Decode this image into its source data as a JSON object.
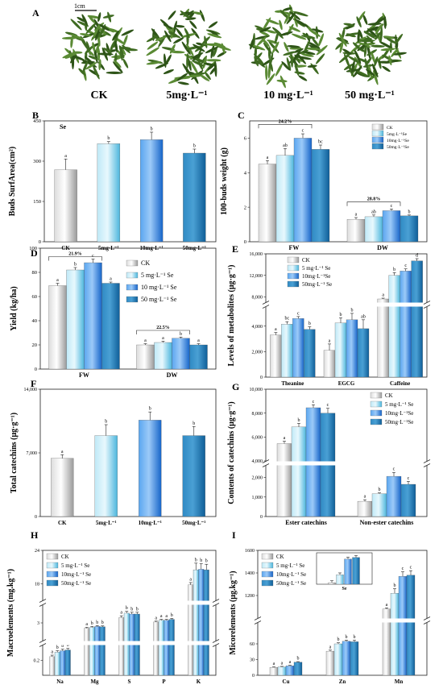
{
  "colors": {
    "ck": "#b8b8b8",
    "s5": "#7fd0ec",
    "s10": "#2f86e0",
    "s50": "#1a74b4",
    "leaf": "#4e7a2e",
    "axis": "#222222"
  },
  "panelA": {
    "letter": "A",
    "scale_label": "1cm",
    "samples": [
      "CK",
      "5mg·L⁻¹",
      "10 mg·L⁻¹",
      "50 mg·L⁻¹"
    ]
  },
  "chart_data": [
    {
      "id": "B",
      "letter": "B",
      "type": "bar",
      "ylabel": "Buds SurfArea(cm²)",
      "ylim": [
        0,
        450
      ],
      "yticks": [
        0,
        150,
        300,
        450
      ],
      "categories": [
        "CK",
        "5mg·L⁻¹",
        "10mg·L⁻¹",
        "50mg·L⁻¹"
      ],
      "values": [
        268,
        365,
        380,
        330
      ],
      "errors": [
        40,
        8,
        28,
        15
      ],
      "letters": [
        "a",
        "b",
        "b",
        "b"
      ],
      "annotation": "Se"
    },
    {
      "id": "C",
      "letter": "C",
      "type": "bar",
      "ylabel": "100-buds weight (g)",
      "ylim": [
        0,
        7
      ],
      "yticks": [
        0,
        2,
        4,
        6
      ],
      "categories": [
        "FW",
        "DW"
      ],
      "series": [
        {
          "name": "CK",
          "values": [
            4.5,
            1.3
          ],
          "errors": [
            0.2,
            0.1
          ],
          "letters": [
            "a",
            "a"
          ]
        },
        {
          "name": "5mg·L⁻¹Se",
          "values": [
            5.0,
            1.45
          ],
          "errors": [
            0.4,
            0.1
          ],
          "letters": [
            "ab",
            "ab"
          ]
        },
        {
          "name": "10mg·L⁻¹Se",
          "values": [
            6.0,
            1.8
          ],
          "errors": [
            0.25,
            0.1
          ],
          "letters": [
            "c",
            "c"
          ]
        },
        {
          "name": "50mg·L⁻¹Se",
          "values": [
            5.35,
            1.5
          ],
          "errors": [
            0.25,
            0.05
          ],
          "letters": [
            "bc",
            "b"
          ]
        }
      ],
      "brackets": [
        {
          "cat": 0,
          "label": "24.2%"
        },
        {
          "cat": 1,
          "label": "28.8%"
        }
      ],
      "legend": "top-right"
    },
    {
      "id": "D",
      "letter": "D",
      "type": "bar",
      "ylabel": "Yield (kg/ha)",
      "ylim": [
        0,
        100
      ],
      "yticks": [
        0,
        20,
        40,
        60,
        80,
        100
      ],
      "categories": [
        "FW",
        "DW"
      ],
      "series": [
        {
          "name": "CK",
          "values": [
            69,
            20
          ],
          "errors": [
            2,
            1
          ],
          "letters": [
            "a",
            "a"
          ]
        },
        {
          "name": "5 mg·L⁻¹ Se",
          "values": [
            82,
            22
          ],
          "errors": [
            2,
            1
          ],
          "letters": [
            "b",
            "a"
          ]
        },
        {
          "name": "10 mg·L⁻¹ Se",
          "values": [
            88,
            25.5
          ],
          "errors": [
            3,
            1
          ],
          "letters": [
            "c",
            "b"
          ]
        },
        {
          "name": "50 mg·L⁻¹ Se",
          "values": [
            71,
            20
          ],
          "errors": [
            1,
            1
          ],
          "letters": [
            "a",
            "a"
          ]
        }
      ],
      "brackets": [
        {
          "cat": 0,
          "label": "21.9%"
        },
        {
          "cat": 1,
          "label": "22.5%"
        }
      ],
      "legend": "top-right"
    },
    {
      "id": "E",
      "letter": "E",
      "type": "bar",
      "ylabel": "Levels of metabolites (μg·g⁻¹)",
      "ylim_lower": [
        0,
        5500
      ],
      "ylim_upper": [
        7000,
        16000
      ],
      "yticks_lower": [
        0,
        2000,
        4000
      ],
      "yticks_upper": [
        8000,
        12000,
        16000
      ],
      "ytick_labels_lower": [
        "0",
        "2,000",
        "4,000"
      ],
      "ytick_labels_upper": [
        "8,000",
        "12,000",
        "16,000"
      ],
      "categories": [
        "Theanine",
        "EGCG",
        "Caffeine"
      ],
      "series": [
        {
          "name": "CK",
          "values": [
            3300,
            2100,
            7600
          ],
          "errors": [
            200,
            500,
            150
          ],
          "letters": [
            "a",
            "a",
            "a"
          ]
        },
        {
          "name": "5 mg·L⁻¹ Se",
          "values": [
            4150,
            4250,
            12000
          ],
          "errors": [
            200,
            400,
            500
          ],
          "letters": [
            "bc",
            "b",
            "b"
          ]
        },
        {
          "name": "10mg·L⁻¹Se",
          "values": [
            4600,
            4500,
            12800
          ],
          "errors": [
            150,
            500,
            400
          ],
          "letters": [
            "c",
            "b",
            "c"
          ]
        },
        {
          "name": "50mg·L⁻¹ Se",
          "values": [
            3750,
            3800,
            14700
          ],
          "errors": [
            200,
            700,
            400
          ],
          "letters": [
            "b",
            "ab",
            "d"
          ]
        }
      ],
      "legend": "top-left"
    },
    {
      "id": "F",
      "letter": "F",
      "type": "bar",
      "ylabel": "Total catechins (μg·g⁻¹)",
      "ylim": [
        0,
        14000
      ],
      "yticks": [
        0,
        7000,
        14000
      ],
      "ytick_labels": [
        "0",
        "7,000",
        "14,000"
      ],
      "categories": [
        "CK",
        "5mg·L⁻¹",
        "10mg·L⁻¹",
        "50mg·L⁻¹"
      ],
      "values": [
        6400,
        8900,
        10600,
        8900
      ],
      "errors": [
        400,
        1200,
        900,
        1000
      ],
      "letters": [
        "a",
        "b",
        "b",
        "b"
      ]
    },
    {
      "id": "G",
      "letter": "G",
      "type": "bar",
      "ylabel": "Contents of catechins (μg·g⁻¹)",
      "ylim_lower": [
        0,
        2600
      ],
      "ylim_upper": [
        4000,
        10000
      ],
      "yticks_lower": [
        0,
        1000,
        2000
      ],
      "yticks_upper": [
        4000,
        6000,
        8000,
        10000
      ],
      "ytick_labels_lower": [
        "0",
        "1,000",
        "2,000"
      ],
      "ytick_labels_upper": [
        "4,000",
        "6,000",
        "8,000",
        "10,000"
      ],
      "categories": [
        "Ester catechins",
        "Non-ester catechins"
      ],
      "series": [
        {
          "name": "CK",
          "values": [
            5450,
            780
          ],
          "errors": [
            200,
            80
          ],
          "letters": [
            "a",
            "a"
          ]
        },
        {
          "name": "5 mg·L⁻¹ Se",
          "values": [
            6850,
            1170
          ],
          "errors": [
            300,
            40
          ],
          "letters": [
            "b",
            "b"
          ]
        },
        {
          "name": "10mg·L⁻¹Se",
          "values": [
            8450,
            2060
          ],
          "errors": [
            250,
            200
          ],
          "letters": [
            "c",
            "c"
          ]
        },
        {
          "name": "50mg·L⁻¹Se",
          "values": [
            8000,
            1650
          ],
          "errors": [
            400,
            150
          ],
          "letters": [
            "c",
            "c"
          ]
        }
      ],
      "legend": "top-right"
    },
    {
      "id": "H",
      "letter": "H",
      "type": "bar",
      "ylabel": "Macroelements (mg.kg⁻¹)",
      "segments": [
        {
          "range": [
            0,
            0.4
          ],
          "ticks": [
            0.2
          ]
        },
        {
          "range": [
            2,
            4
          ],
          "ticks": [
            3
          ]
        },
        {
          "range": [
            15,
            24
          ],
          "ticks": [
            18,
            24
          ]
        }
      ],
      "categories": [
        "Na",
        "Mg",
        "S",
        "P",
        "K"
      ],
      "series": [
        {
          "name": "CK",
          "values": [
            0.25,
            2.7,
            3.3,
            3.05,
            17.8
          ],
          "errors": [
            0.02,
            0.05,
            0.1,
            0.05,
            0.4
          ],
          "letters": [
            "a",
            "a",
            "a",
            "a",
            "a"
          ]
        },
        {
          "name": "5 mg·L⁻¹ Se",
          "values": [
            0.31,
            2.75,
            3.55,
            3.15,
            20.5
          ],
          "errors": [
            0.02,
            0.05,
            0.1,
            0.05,
            1.2
          ],
          "letters": [
            "b",
            "b",
            "b",
            "a",
            "b"
          ]
        },
        {
          "name": "10mg·L⁻¹ Se",
          "values": [
            0.33,
            2.8,
            3.5,
            3.15,
            20.6
          ],
          "errors": [
            0.02,
            0.05,
            0.1,
            0.05,
            1.0
          ],
          "letters": [
            "b",
            "b",
            "b",
            "a",
            "b"
          ]
        },
        {
          "name": "50mg·L⁻¹ Se",
          "values": [
            0.34,
            2.78,
            3.5,
            3.2,
            20.5
          ],
          "errors": [
            0.02,
            0.05,
            0.1,
            0.05,
            1.0
          ],
          "letters": [
            "b",
            "b",
            "b",
            "b",
            "b"
          ]
        }
      ],
      "legend": "top-left"
    },
    {
      "id": "I",
      "letter": "I",
      "type": "bar",
      "ylabel": "Micorelements (μg.kg⁻¹)",
      "segments": [
        {
          "range": [
            0,
            100
          ],
          "ticks": [
            0,
            30,
            60
          ]
        },
        {
          "range": [
            1000,
            1600
          ],
          "ticks": [
            1200,
            1400,
            1600
          ]
        }
      ],
      "categories": [
        "Cu",
        "Zn",
        "Mn"
      ],
      "series": [
        {
          "name": "CK",
          "values": [
            15,
            46,
            1080
          ],
          "errors": [
            1,
            2,
            10
          ],
          "letters": [
            "a",
            "a",
            "a"
          ]
        },
        {
          "name": "5 mg·L⁻¹ Se",
          "values": [
            16,
            60,
            1220
          ],
          "errors": [
            1,
            2,
            40
          ],
          "letters": [
            "a",
            "b",
            "b"
          ]
        },
        {
          "name": "10mg·L⁻¹ Se",
          "values": [
            18,
            65,
            1370
          ],
          "errors": [
            1,
            2,
            40
          ],
          "letters": [
            "a",
            "b",
            "c"
          ]
        },
        {
          "name": "50mg·L⁻¹ Se",
          "values": [
            25,
            64,
            1380
          ],
          "errors": [
            1,
            3,
            40
          ],
          "letters": [
            "b",
            "b",
            "c"
          ]
        }
      ],
      "legend": "top-left",
      "inset": {
        "categories": [
          "Se"
        ],
        "series": [
          {
            "name": "CK",
            "values": [
              0.05
            ]
          },
          {
            "name": "5 mg·L⁻¹ Se",
            "values": [
              0.3
            ]
          },
          {
            "name": "10mg·L⁻¹ Se",
            "values": [
              0.8
            ]
          },
          {
            "name": "50mg·L⁻¹ Se",
            "values": [
              0.85
            ]
          }
        ],
        "ylim": [
          0,
          1
        ]
      }
    }
  ]
}
